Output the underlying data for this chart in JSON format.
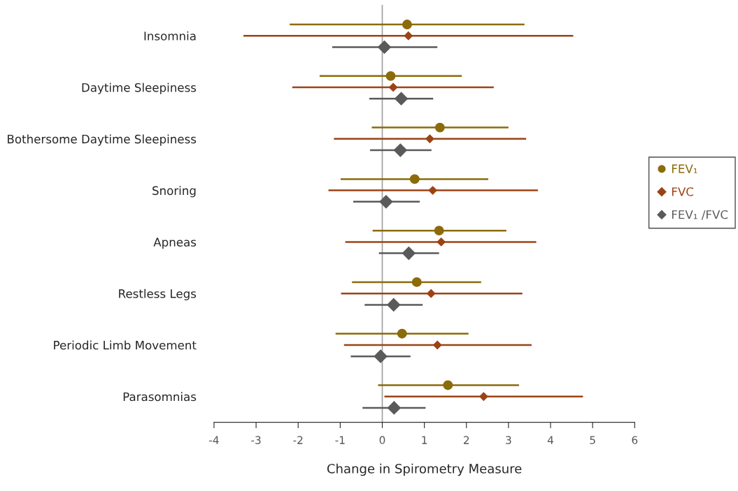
{
  "chart_data": {
    "type": "scatter",
    "orientation": "horizontal",
    "xlabel": "Change in Spirometry Measure",
    "categories": [
      "Insomnia",
      "Daytime Sleepiness",
      "Bothersome Daytime Sleepiness",
      "Snoring",
      "Apneas",
      "Restless Legs",
      "Periodic Limb Movement",
      "Parasomnias"
    ],
    "xlim": [
      -4,
      6
    ],
    "xticks": [
      -4,
      -3,
      -2,
      -1,
      0,
      1,
      2,
      3,
      4,
      5,
      6
    ],
    "grid": false,
    "legend": "right",
    "ref_lines": [
      {
        "axis": "x",
        "value": 0,
        "color": "#a0a0a0"
      }
    ],
    "series": [
      {
        "name": "FEV₁",
        "color": "#8b6b0a",
        "marker": "circle",
        "values": [
          0.59,
          0.2,
          1.37,
          0.77,
          1.35,
          0.82,
          0.47,
          1.56
        ],
        "errors": [
          [
            -2.2,
            3.38
          ],
          [
            -1.49,
            1.89
          ],
          [
            -0.25,
            3.0
          ],
          [
            -0.99,
            2.52
          ],
          [
            -0.23,
            2.95
          ],
          [
            -0.72,
            2.35
          ],
          [
            -1.11,
            2.05
          ],
          [
            -0.1,
            3.25
          ]
        ]
      },
      {
        "name": "FVC",
        "color": "#9c4316",
        "marker": "diamond",
        "values": [
          0.62,
          0.26,
          1.13,
          1.2,
          1.4,
          1.16,
          1.31,
          2.41
        ],
        "errors": [
          [
            -3.3,
            4.54
          ],
          [
            -2.14,
            2.65
          ],
          [
            -1.15,
            3.42
          ],
          [
            -1.28,
            3.7
          ],
          [
            -0.88,
            3.66
          ],
          [
            -0.98,
            3.33
          ],
          [
            -0.91,
            3.55
          ],
          [
            0.05,
            4.77
          ]
        ]
      },
      {
        "name": "FEV₁ /FVC",
        "color": "#5a5a5a",
        "marker": "diamond",
        "values": [
          0.05,
          0.45,
          0.43,
          0.09,
          0.63,
          0.27,
          -0.04,
          0.28
        ],
        "errors": [
          [
            -1.19,
            1.31
          ],
          [
            -0.31,
            1.21
          ],
          [
            -0.29,
            1.17
          ],
          [
            -0.69,
            0.89
          ],
          [
            -0.08,
            1.35
          ],
          [
            -0.42,
            0.96
          ],
          [
            -0.75,
            0.67
          ],
          [
            -0.47,
            1.03
          ]
        ]
      }
    ]
  }
}
